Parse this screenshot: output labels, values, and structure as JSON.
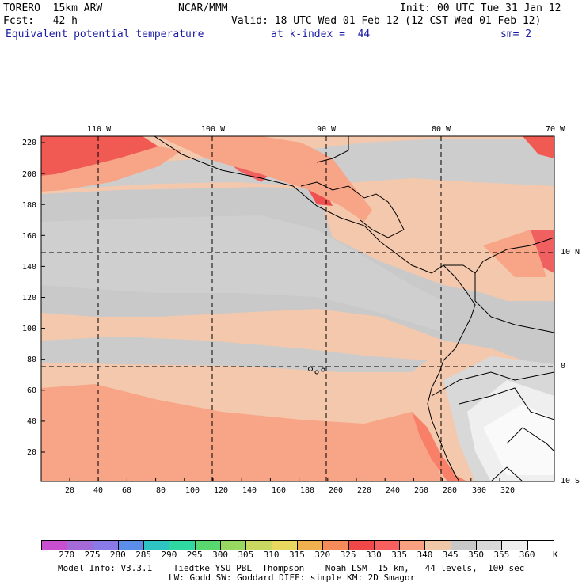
{
  "header": {
    "model": "TORERO  15km ARW",
    "center": "NCAR/MMM",
    "init": "Init: 00 UTC Tue 31 Jan 12",
    "fcst": "Fcst:   42 h",
    "valid": "Valid: 18 UTC Wed 01 Feb 12 (12 CST Wed 01 Feb 12)",
    "field": "Equivalent potential temperature",
    "kindex": "at k-index =  44",
    "sm": "sm= 2"
  },
  "lon_labels": [
    "110 W",
    "100 W",
    "90 W",
    "80 W",
    "70 W"
  ],
  "lat_labels": [
    "10 N",
    "0",
    "10 S"
  ],
  "y_ticks": [
    "220",
    "200",
    "180",
    "160",
    "140",
    "120",
    "100",
    "80",
    "60",
    "40",
    "20"
  ],
  "x_ticks": [
    "20",
    "40",
    "60",
    "80",
    "100",
    "120",
    "140",
    "160",
    "180",
    "200",
    "220",
    "240",
    "260",
    "280",
    "300",
    "320"
  ],
  "colorbar": {
    "labels": [
      "270",
      "275",
      "280",
      "285",
      "290",
      "295",
      "300",
      "305",
      "310",
      "315",
      "320",
      "325",
      "330",
      "335",
      "340",
      "345",
      "350",
      "355",
      "360"
    ],
    "unit": "K",
    "colors": [
      "#c84fd0",
      "#a46bd8",
      "#8a7ae8",
      "#5a8ee8",
      "#2ec4c4",
      "#2fd8a0",
      "#5ad870",
      "#98d860",
      "#c8d860",
      "#e8d860",
      "#f0b050",
      "#f58a5a",
      "#f04848",
      "#f86060",
      "#f8a080",
      "#f0c8a8",
      "#c8c8c8",
      "#d8d8d8",
      "#eeeeee",
      "#ffffff"
    ]
  },
  "footer": {
    "line1": "Model Info: V3.3.1    Tiedtke YSU PBL  Thompson    Noah LSM  15 km,   44 levels,  100 sec",
    "line2": "LW: Godd SW: Goddard DIFF: simple KM: 2D Smagor"
  }
}
